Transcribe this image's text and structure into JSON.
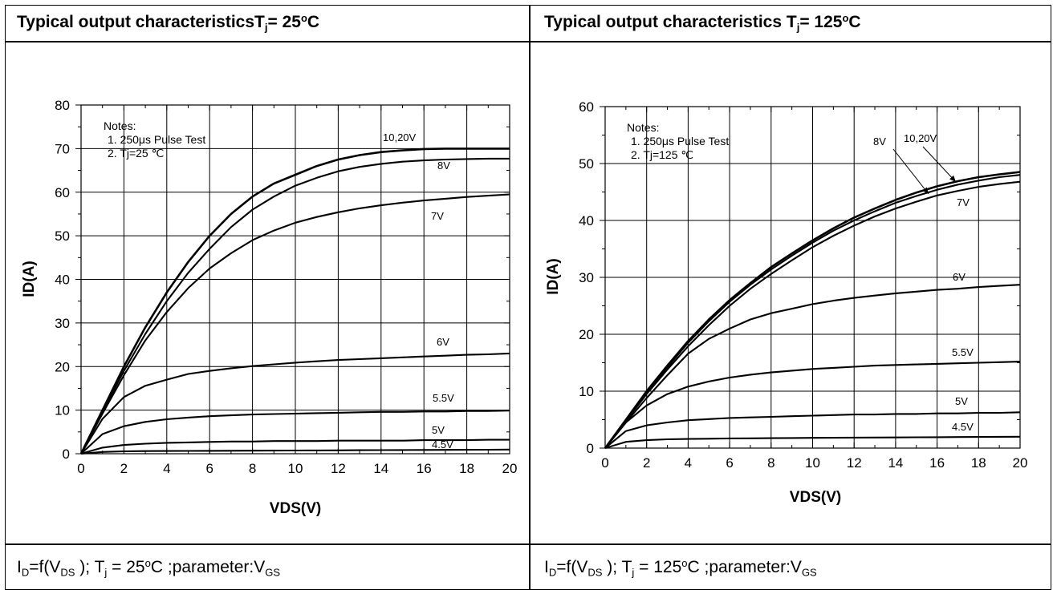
{
  "panels": [
    {
      "header": {
        "main": "Typical output characteristicsT",
        "sub": "j",
        "eq": "= 25",
        "sup": "o",
        "unit": "C"
      },
      "footer": {
        "i": "I",
        "i_sub": "D",
        "f": "=f(V",
        "f_sub": "DS",
        "close": " ); T",
        "t_sub": "j",
        "eq": " = 25",
        "sup": "o",
        "unit": "C ;parameter:V",
        "v_sub": "GS"
      }
    },
    {
      "header": {
        "main": "Typical output characteristics T",
        "sub": "j",
        "eq": "= 125",
        "sup": "o",
        "unit": "C"
      },
      "footer": {
        "i": "I",
        "i_sub": "D",
        "f": "=f(V",
        "f_sub": "DS",
        "close": " ); T",
        "t_sub": "j",
        "eq": " = 125",
        "sup": "o",
        "unit": "C ;parameter:V",
        "v_sub": "GS"
      }
    }
  ],
  "chart_data": [
    {
      "type": "line",
      "xlabel": "VDS(V)",
      "ylabel": "ID(A)",
      "xlim": [
        0,
        20
      ],
      "ylim": [
        0,
        80
      ],
      "xticks": [
        0,
        2,
        4,
        6,
        8,
        10,
        12,
        14,
        16,
        18,
        20
      ],
      "yticks": [
        0,
        10,
        20,
        30,
        40,
        50,
        60,
        70,
        80
      ],
      "grid": true,
      "notes": [
        "Notes:",
        "1. 250μs  Pulse Test",
        "2. Tj=25 ℃"
      ],
      "x": [
        0,
        1,
        2,
        3,
        4,
        5,
        6,
        7,
        8,
        9,
        10,
        11,
        12,
        13,
        14,
        15,
        16,
        17,
        18,
        19,
        20
      ],
      "series": [
        {
          "name": "10,20V",
          "values": [
            0,
            10,
            20,
            29,
            37,
            44,
            50,
            55,
            59,
            62,
            64,
            66,
            67.5,
            68.5,
            69.2,
            69.6,
            69.9,
            70,
            70,
            70,
            70
          ]
        },
        {
          "name": "8V",
          "values": [
            0,
            9.6,
            19,
            27.5,
            35,
            41.5,
            47,
            52,
            56,
            59,
            61.5,
            63.3,
            64.8,
            65.8,
            66.5,
            67,
            67.3,
            67.5,
            67.6,
            67.7,
            67.7
          ]
        },
        {
          "name": "7V",
          "values": [
            0,
            9.2,
            18,
            26,
            32.5,
            38,
            42.5,
            46,
            49,
            51.2,
            53,
            54.3,
            55.4,
            56.3,
            57,
            57.6,
            58.1,
            58.5,
            58.9,
            59.2,
            59.5
          ]
        },
        {
          "name": "6V",
          "values": [
            0,
            8,
            13,
            15.6,
            17,
            18.3,
            19,
            19.6,
            20.1,
            20.5,
            20.9,
            21.2,
            21.5,
            21.7,
            21.9,
            22.1,
            22.3,
            22.5,
            22.7,
            22.8,
            23
          ]
        },
        {
          "name": "5.5V",
          "values": [
            0,
            4.5,
            6.3,
            7.3,
            7.9,
            8.3,
            8.6,
            8.8,
            9,
            9.1,
            9.2,
            9.3,
            9.4,
            9.5,
            9.6,
            9.6,
            9.7,
            9.7,
            9.8,
            9.8,
            9.9
          ]
        },
        {
          "name": "5V",
          "values": [
            0,
            1.4,
            2,
            2.3,
            2.5,
            2.6,
            2.7,
            2.8,
            2.8,
            2.9,
            2.9,
            2.9,
            3,
            3,
            3,
            3,
            3.1,
            3.1,
            3.1,
            3.2,
            3.2
          ]
        },
        {
          "name": "4.5V",
          "values": [
            0,
            0.4,
            0.55,
            0.6,
            0.62,
            0.64,
            0.66,
            0.68,
            0.7,
            0.72,
            0.74,
            0.76,
            0.78,
            0.8,
            0.82,
            0.84,
            0.86,
            0.88,
            0.9,
            0.92,
            0.95
          ]
        }
      ]
    },
    {
      "type": "line",
      "xlabel": "VDS(V)",
      "ylabel": "ID(A)",
      "xlim": [
        0,
        20
      ],
      "ylim": [
        0,
        60
      ],
      "xticks": [
        0,
        2,
        4,
        6,
        8,
        10,
        12,
        14,
        16,
        18,
        20
      ],
      "yticks": [
        0,
        10,
        20,
        30,
        40,
        50,
        60
      ],
      "grid": true,
      "notes": [
        "Notes:",
        "1. 250μs  Pulse Test",
        "2. Tj=125 ℃"
      ],
      "x": [
        0,
        1,
        2,
        3,
        4,
        5,
        6,
        7,
        8,
        9,
        10,
        11,
        12,
        13,
        14,
        15,
        16,
        17,
        18,
        19,
        20
      ],
      "series": [
        {
          "name": "10,20V",
          "values": [
            0,
            5,
            10,
            14.5,
            18.8,
            22.6,
            26,
            29,
            31.8,
            34.2,
            36.5,
            38.6,
            40.5,
            42.1,
            43.6,
            44.9,
            46,
            46.9,
            47.6,
            48.1,
            48.5
          ]
        },
        {
          "name": "8V",
          "values": [
            0,
            4.9,
            9.8,
            14.2,
            18.5,
            22.3,
            25.7,
            28.7,
            31.4,
            33.8,
            36.1,
            38.2,
            40,
            41.6,
            43.1,
            44.3,
            45.4,
            46.3,
            47,
            47.6,
            48
          ]
        },
        {
          "name": "7V",
          "values": [
            0,
            4.8,
            9.5,
            13.8,
            17.9,
            21.6,
            25,
            28,
            30.6,
            33,
            35.3,
            37.3,
            39.1,
            40.7,
            42.1,
            43.3,
            44.4,
            45.2,
            45.9,
            46.4,
            46.8
          ]
        },
        {
          "name": "6V",
          "values": [
            0,
            4.5,
            8.8,
            12.8,
            16.6,
            19.2,
            21,
            22.6,
            23.7,
            24.5,
            25.3,
            25.9,
            26.4,
            26.8,
            27.2,
            27.5,
            27.8,
            28,
            28.3,
            28.5,
            28.7
          ]
        },
        {
          "name": "5.5V",
          "values": [
            0,
            4.5,
            7.5,
            9.5,
            10.8,
            11.7,
            12.4,
            12.9,
            13.3,
            13.6,
            13.9,
            14.1,
            14.3,
            14.5,
            14.6,
            14.7,
            14.8,
            14.9,
            15,
            15.1,
            15.2
          ]
        },
        {
          "name": "5V",
          "values": [
            0,
            3,
            4,
            4.5,
            4.9,
            5.1,
            5.3,
            5.4,
            5.5,
            5.6,
            5.7,
            5.8,
            5.9,
            5.9,
            6,
            6,
            6.1,
            6.1,
            6.2,
            6.2,
            6.3
          ]
        },
        {
          "name": "4.5V",
          "values": [
            0,
            1.1,
            1.4,
            1.55,
            1.6,
            1.65,
            1.7,
            1.72,
            1.75,
            1.77,
            1.8,
            1.82,
            1.84,
            1.86,
            1.88,
            1.9,
            1.92,
            1.94,
            1.96,
            1.98,
            2
          ]
        }
      ]
    }
  ]
}
